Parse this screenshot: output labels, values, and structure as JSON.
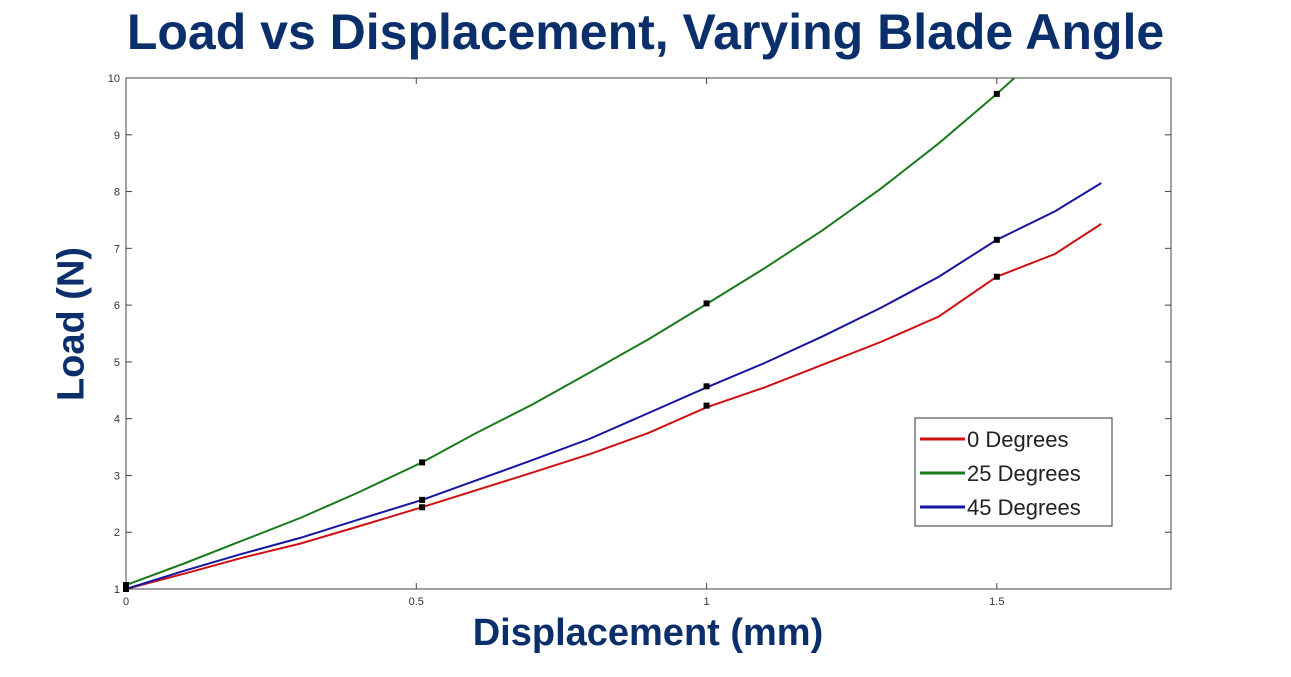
{
  "chart_data": {
    "type": "line",
    "title": "Load vs Displacement, Varying Blade Angle",
    "xlabel": "Displacement (mm)",
    "ylabel": "Load (N)",
    "xlim": [
      0,
      1.8
    ],
    "ylim": [
      1,
      10
    ],
    "xticks": [
      "0",
      "0.5",
      "1",
      "1.5"
    ],
    "yticks": [
      "1",
      "2",
      "3",
      "4",
      "5",
      "6",
      "7",
      "8",
      "9",
      "10"
    ],
    "grid": false,
    "legend_position": "bottom-right",
    "series": [
      {
        "name": "0 Degrees",
        "color": "#d01010",
        "x": [
          0,
          0.1,
          0.2,
          0.3,
          0.4,
          0.51,
          0.6,
          0.7,
          0.8,
          0.9,
          1.0,
          1.1,
          1.2,
          1.3,
          1.4,
          1.5,
          1.6,
          1.68
        ],
        "y": [
          1.0,
          1.27,
          1.55,
          1.8,
          2.1,
          2.44,
          2.73,
          3.05,
          3.38,
          3.75,
          4.2,
          4.55,
          4.95,
          5.35,
          5.8,
          6.5,
          6.9,
          7.43
        ],
        "markers_x": [
          0,
          0.51,
          1.0,
          1.5
        ],
        "markers_y": [
          1.0,
          2.44,
          4.23,
          6.5
        ]
      },
      {
        "name": "25 Degrees",
        "color": "#1a7a1a",
        "x": [
          0,
          0.1,
          0.2,
          0.3,
          0.4,
          0.51,
          0.6,
          0.7,
          0.8,
          0.9,
          1.0,
          1.1,
          1.2,
          1.3,
          1.4,
          1.5,
          1.53
        ],
        "y": [
          1.07,
          1.45,
          1.85,
          2.25,
          2.7,
          3.23,
          3.73,
          4.25,
          4.82,
          5.4,
          6.02,
          6.65,
          7.32,
          8.05,
          8.85,
          9.72,
          10.0
        ],
        "markers_x": [
          0,
          0.51,
          1.0,
          1.5
        ],
        "markers_y": [
          1.07,
          3.23,
          6.03,
          9.72
        ]
      },
      {
        "name": "45 Degrees",
        "color": "#1515a0",
        "x": [
          0,
          0.1,
          0.2,
          0.3,
          0.4,
          0.51,
          0.6,
          0.7,
          0.8,
          0.9,
          1.0,
          1.1,
          1.2,
          1.3,
          1.4,
          1.5,
          1.6,
          1.68
        ],
        "y": [
          1.0,
          1.32,
          1.62,
          1.9,
          2.22,
          2.57,
          2.9,
          3.27,
          3.65,
          4.1,
          4.55,
          4.98,
          5.45,
          5.95,
          6.5,
          7.15,
          7.65,
          8.15
        ],
        "markers_x": [
          0,
          0.51,
          1.0,
          1.5
        ],
        "markers_y": [
          1.0,
          2.57,
          4.57,
          7.15
        ]
      }
    ]
  }
}
